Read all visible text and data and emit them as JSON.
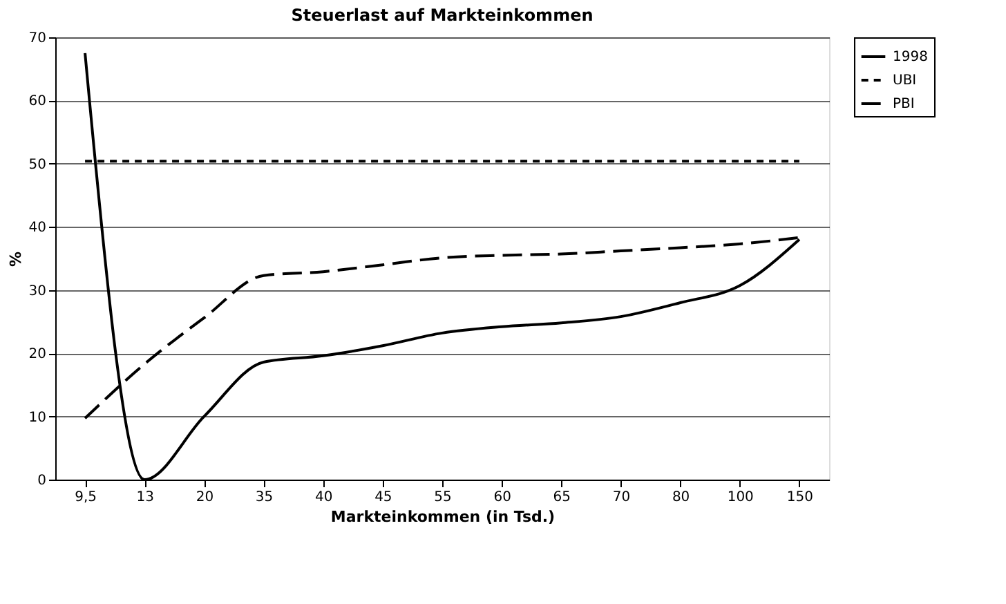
{
  "chart_data": {
    "type": "line",
    "title": "Steuerlast auf Markteinkommen",
    "xlabel": "Markteinkommen (in Tsd.)",
    "ylabel": "%",
    "categories": [
      "9,5",
      "13",
      "20",
      "35",
      "40",
      "45",
      "55",
      "60",
      "65",
      "70",
      "80",
      "100",
      "150"
    ],
    "series": [
      {
        "name": "1998",
        "color": "#000000",
        "line_style": "solid",
        "values": [
          67.5,
          0,
          10,
          18.6,
          19.6,
          21.2,
          23.2,
          24.2,
          24.8,
          25.8,
          28,
          30.7,
          38
        ]
      },
      {
        "name": "UBI",
        "color": "#000000",
        "line_style": "dotted",
        "values": [
          50.4,
          50.4,
          50.4,
          50.4,
          50.4,
          50.4,
          50.4,
          50.4,
          50.4,
          50.4,
          50.4,
          50.4,
          50.4
        ]
      },
      {
        "name": "PBI",
        "color": "#000000",
        "line_style": "dashed",
        "values": [
          9.7,
          18.3,
          25.6,
          32.3,
          32.9,
          34,
          35.1,
          35.5,
          35.7,
          36.2,
          36.7,
          37.3,
          38.3
        ]
      }
    ],
    "ylim": [
      0,
      70
    ],
    "yticks": [
      0,
      10,
      20,
      30,
      40,
      50,
      60,
      70
    ],
    "grid": "y",
    "legend": "right",
    "marker": "none"
  }
}
